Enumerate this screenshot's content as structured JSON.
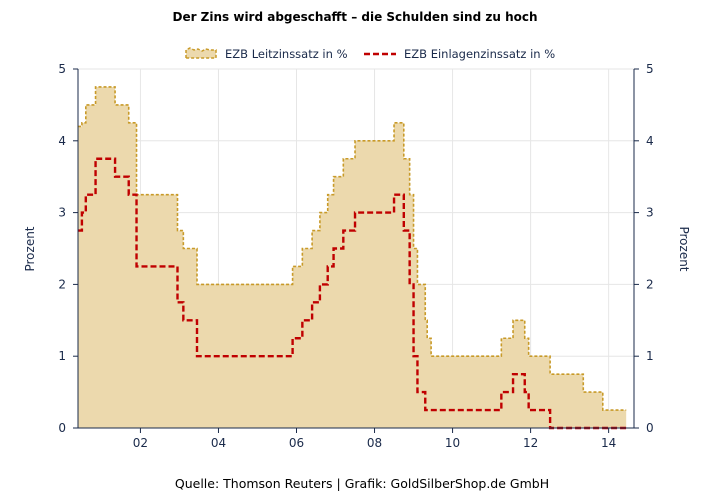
{
  "chart_data": {
    "type": "area",
    "title": "Der Zins wird abgeschafft – die Schulden sind zu hoch",
    "ylabel_left": "Prozent",
    "ylabel_right": "Prozent",
    "source": "Quelle: Thomson Reuters | Grafik: GoldSilberShop.de GmbH",
    "xlim": [
      2000.4,
      2014.65
    ],
    "ylim": [
      0,
      5
    ],
    "x_ticks": [
      {
        "value": 2002,
        "label": "02"
      },
      {
        "value": 2004,
        "label": "04"
      },
      {
        "value": 2006,
        "label": "06"
      },
      {
        "value": 2008,
        "label": "08"
      },
      {
        "value": 2010,
        "label": "10"
      },
      {
        "value": 2012,
        "label": "12"
      },
      {
        "value": 2014,
        "label": "14"
      }
    ],
    "y_ticks": [
      0,
      1,
      2,
      3,
      4,
      5
    ],
    "y_tick_labels": [
      "0",
      "1",
      "2",
      "3",
      "4",
      "5"
    ],
    "grid": true,
    "legend_position": "top",
    "colors": {
      "leitzins_fill": "#ecd9ad",
      "leitzins_line": "#c89a28",
      "einlage_line": "#c00000",
      "grid": "#e6e6e6",
      "axis": "#1a2a4a"
    },
    "series": [
      {
        "name": "EZB Leitzinssatz in %",
        "style": "area-dashed",
        "x": [
          2000.4,
          2000.5,
          2000.6,
          2000.75,
          2000.85,
          2001.35,
          2001.7,
          2001.9,
          2002.95,
          2003.1,
          2003.45,
          2005.9,
          2006.15,
          2006.4,
          2006.6,
          2006.8,
          2006.95,
          2007.2,
          2007.4,
          2007.5,
          2008.5,
          2008.75,
          2008.9,
          2009.0,
          2009.1,
          2009.3,
          2009.35,
          2009.45,
          2011.25,
          2011.55,
          2011.85,
          2011.95,
          2012.5,
          2013.35,
          2013.85,
          2014.45
        ],
        "y": [
          4.2,
          4.25,
          4.5,
          4.5,
          4.75,
          4.5,
          4.25,
          3.25,
          2.75,
          2.5,
          2.0,
          2.25,
          2.5,
          2.75,
          3.0,
          3.25,
          3.5,
          3.75,
          3.75,
          4.0,
          4.25,
          3.75,
          3.25,
          2.5,
          2.0,
          1.5,
          1.25,
          1.0,
          1.25,
          1.5,
          1.25,
          1.0,
          0.75,
          0.5,
          0.25,
          0.25
        ]
      },
      {
        "name": "EZB Einlagenzinssatz in %",
        "style": "line-dashed",
        "x": [
          2000.4,
          2000.5,
          2000.6,
          2000.75,
          2000.85,
          2001.35,
          2001.7,
          2001.9,
          2002.95,
          2003.1,
          2003.45,
          2005.9,
          2006.15,
          2006.4,
          2006.6,
          2006.8,
          2006.95,
          2007.2,
          2007.4,
          2007.5,
          2008.5,
          2008.75,
          2008.9,
          2009.0,
          2009.1,
          2009.3,
          2009.35,
          2009.45,
          2011.25,
          2011.55,
          2011.85,
          2011.95,
          2012.5,
          2013.35,
          2013.85,
          2014.45
        ],
        "y": [
          2.75,
          3.0,
          3.25,
          3.25,
          3.75,
          3.5,
          3.25,
          2.25,
          1.75,
          1.5,
          1.0,
          1.25,
          1.5,
          1.75,
          2.0,
          2.25,
          2.5,
          2.75,
          2.75,
          3.0,
          3.25,
          2.75,
          2.0,
          1.0,
          0.5,
          0.25,
          0.25,
          0.25,
          0.5,
          0.75,
          0.5,
          0.25,
          0.0,
          0.0,
          0.0,
          0.0
        ]
      }
    ]
  }
}
